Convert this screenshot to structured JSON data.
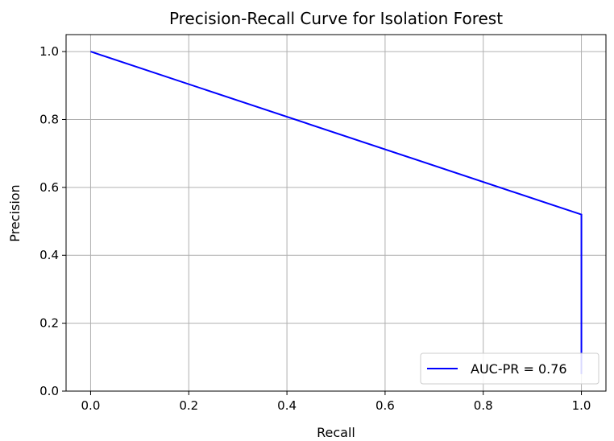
{
  "chart_data": {
    "type": "line",
    "title": "Precision-Recall Curve for Isolation Forest",
    "xlabel": "Recall",
    "ylabel": "Precision",
    "xlim": [
      -0.05,
      1.05
    ],
    "ylim": [
      0.0,
      1.05
    ],
    "xticks": [
      "0.0",
      "0.2",
      "0.4",
      "0.6",
      "0.8",
      "1.0"
    ],
    "yticks": [
      "0.0",
      "0.2",
      "0.4",
      "0.6",
      "0.8",
      "1.0"
    ],
    "grid": true,
    "legend_position": "lower-right",
    "series": [
      {
        "name": "AUC-PR = 0.76",
        "color": "#0000ff",
        "x": [
          0.0,
          1.0,
          1.0
        ],
        "y": [
          1.0,
          0.52,
          0.05
        ]
      }
    ]
  }
}
